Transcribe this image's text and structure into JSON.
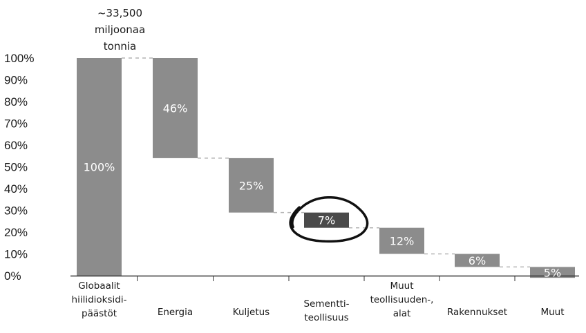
{
  "chart_data": {
    "type": "bar",
    "subtype": "waterfall",
    "total_label": [
      "~33,500",
      "miljoonaa",
      "tonnia"
    ],
    "yticks": [
      "0%",
      "10%",
      "20%",
      "30%",
      "40%",
      "50%",
      "60%",
      "70%",
      "80%",
      "90%",
      "100%"
    ],
    "ylim": [
      0,
      100
    ],
    "categories": [
      [
        "Globaalit",
        "hiilidioksidi-",
        "päästöt"
      ],
      [
        "Energia"
      ],
      [
        "Kuljetus"
      ],
      [
        "Sementti-",
        "teollisuus"
      ],
      [
        "Muut",
        "teollisuuden-,",
        "alat"
      ],
      [
        "Rakennukset"
      ],
      [
        "Muut"
      ]
    ],
    "values": [
      100,
      46,
      25,
      7,
      12,
      6,
      5
    ],
    "value_labels": [
      "100%",
      "46%",
      "25%",
      "7%",
      "12%",
      "6%",
      "5%"
    ],
    "highlighted_index": 3,
    "colors": {
      "bar": "#8c8c8c",
      "highlight": "#4a4a4a",
      "connector": "#b4b4b4",
      "axis": "#333333",
      "circle": "#111111"
    }
  }
}
